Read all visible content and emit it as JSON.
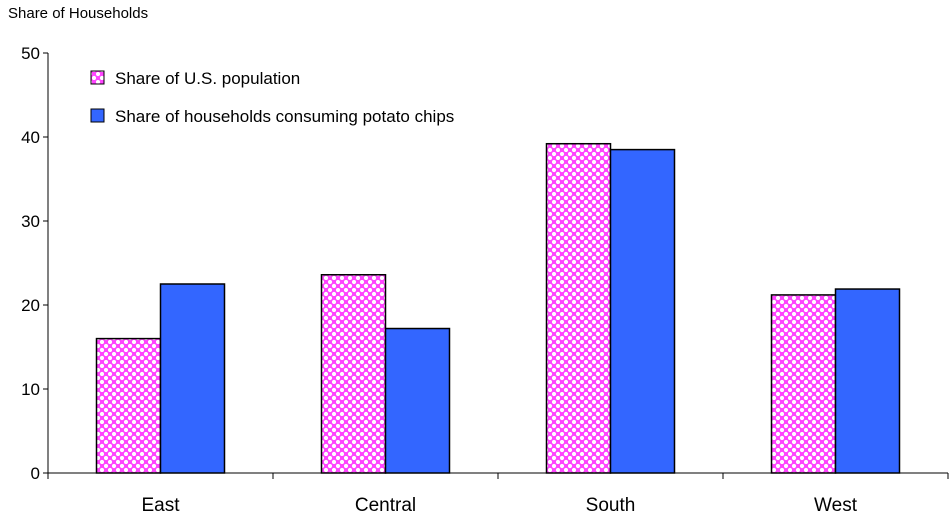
{
  "chart_data": {
    "type": "bar",
    "title": "",
    "xlabel": "",
    "ylabel": "Share of Households",
    "ylim": [
      0,
      50
    ],
    "yticks": [
      0,
      10,
      20,
      30,
      40,
      50
    ],
    "categories": [
      "East",
      "Central",
      "South",
      "West"
    ],
    "grid": false,
    "legend_position": "top-left",
    "series": [
      {
        "name": "Share of U.S. population",
        "values": [
          16,
          23.6,
          39.2,
          21.2
        ],
        "color": "#ff33ff",
        "pattern": "dotted-pink-white"
      },
      {
        "name": "Share of households consuming potato chips",
        "values": [
          22.5,
          17.2,
          38.5,
          21.9
        ],
        "color": "#3366ff",
        "pattern": "solid"
      }
    ]
  }
}
